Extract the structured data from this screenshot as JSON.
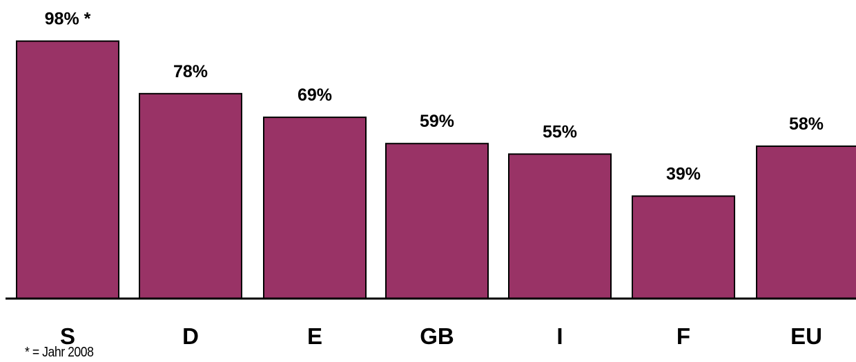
{
  "chart_data": {
    "type": "bar",
    "categories": [
      "S",
      "D",
      "E",
      "GB",
      "I",
      "F",
      "EU"
    ],
    "values": [
      98,
      78,
      69,
      59,
      55,
      39,
      58
    ],
    "data_labels": [
      "98% *",
      "78%",
      "69%",
      "59%",
      "55%",
      "39%",
      "58%"
    ],
    "title": "",
    "xlabel": "",
    "ylabel": "",
    "ylim": [
      0,
      100
    ],
    "bar_color": "#993366",
    "grid": false,
    "legend": "none"
  },
  "footnote": "* = Jahr 2008"
}
